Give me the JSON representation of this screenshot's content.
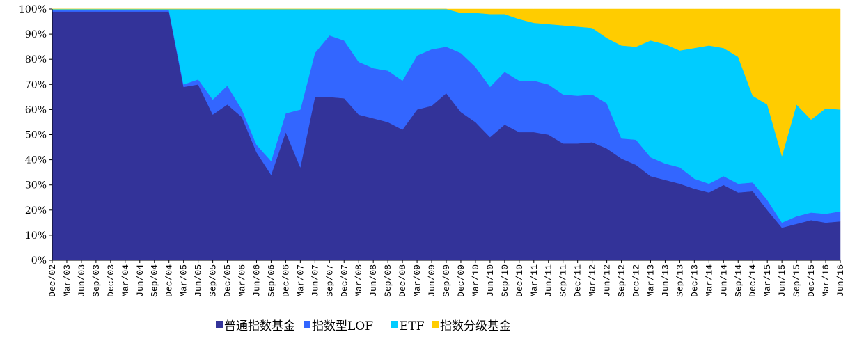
{
  "chart_data": {
    "type": "stacked_area",
    "categories": [
      "Dec/02",
      "Mar/03",
      "Jun/03",
      "Sep/03",
      "Dec/03",
      "Mar/04",
      "Jun/04",
      "Sep/04",
      "Dec/04",
      "Mar/05",
      "Jun/05",
      "Sep/05",
      "Dec/05",
      "Mar/06",
      "Jun/06",
      "Sep/06",
      "Dec/06",
      "Mar/07",
      "Jun/07",
      "Sep/07",
      "Dec/07",
      "Mar/08",
      "Jun/08",
      "Sep/08",
      "Dec/08",
      "Mar/09",
      "Jun/09",
      "Sep/09",
      "Dec/09",
      "Mar/10",
      "Jun/10",
      "Sep/10",
      "Dec/10",
      "Mar/11",
      "Jun/11",
      "Sep/11",
      "Dec/11",
      "Mar/12",
      "Jun/12",
      "Sep/12",
      "Dec/12",
      "Mar/13",
      "Jun/13",
      "Sep/13",
      "Dec/13",
      "Mar/14",
      "Jun/14",
      "Sep/14",
      "Dec/14",
      "Mar/15",
      "Jun/15",
      "Sep/15",
      "Dec/15",
      "Mar/16",
      "Jun/16"
    ],
    "series": [
      {
        "name": "普通指数基金",
        "color": "#333399",
        "values": [
          99,
          99,
          99,
          99,
          99,
          99,
          99,
          99,
          99,
          69,
          70,
          58,
          62,
          57,
          43,
          34,
          51,
          37,
          65,
          65,
          64.5,
          58,
          56.5,
          55,
          52,
          60,
          61.5,
          66.5,
          59,
          55,
          49,
          54,
          51,
          51,
          50,
          46.5,
          46.5,
          47,
          44.5,
          40.5,
          38,
          33.5,
          32,
          30.5,
          28.5,
          27,
          30,
          27,
          27.5,
          20,
          13,
          14.5,
          16,
          15,
          15.5
        ]
      },
      {
        "name": "指数型LOF",
        "color": "#3366ff",
        "values": [
          0.5,
          0.5,
          0.5,
          0.5,
          0.5,
          0.5,
          0.5,
          0.5,
          0.5,
          1,
          2,
          6,
          7.5,
          3,
          3,
          5.5,
          7.5,
          23,
          17.5,
          24.5,
          23,
          21,
          20,
          20.5,
          19.5,
          21.5,
          22.5,
          18.5,
          23.5,
          22,
          20,
          21,
          20.5,
          20.5,
          20,
          19.5,
          19,
          19,
          18,
          8,
          10,
          7.5,
          6.5,
          6.5,
          4,
          3.5,
          3.5,
          3.5,
          3.5,
          4,
          2,
          3,
          3,
          3.5,
          4
        ]
      },
      {
        "name": "ETF",
        "color": "#00ccff",
        "values": [
          0.5,
          0.5,
          0.5,
          0.5,
          0.5,
          0.5,
          0.5,
          0.5,
          0.5,
          30,
          28,
          36,
          30.5,
          40,
          54,
          60.5,
          41.5,
          40,
          17.5,
          10.5,
          12.5,
          21,
          23.5,
          24.5,
          28.5,
          18.5,
          16,
          15,
          16,
          21.5,
          29,
          23,
          24.5,
          23,
          24,
          27.5,
          27.5,
          26.5,
          26,
          37,
          37,
          46.5,
          47.5,
          46.5,
          52,
          55,
          51,
          50.5,
          34.5,
          38,
          26.5,
          44.5,
          37,
          42,
          40.5
        ]
      },
      {
        "name": "指数分级基金",
        "color": "#ffcc00",
        "values": [
          0,
          0,
          0,
          0,
          0,
          0,
          0,
          0,
          0,
          0,
          0,
          0,
          0,
          0,
          0,
          0,
          0,
          0,
          0,
          0,
          0,
          0,
          0,
          0,
          0,
          0,
          0,
          0,
          1.5,
          1.5,
          2,
          2,
          4,
          5.5,
          6,
          6.5,
          7,
          7.5,
          11.5,
          14.5,
          15,
          12.5,
          14,
          16.5,
          15.5,
          14.5,
          15.5,
          19,
          34.5,
          38,
          58.5,
          38,
          44,
          39.5,
          40
        ]
      }
    ],
    "ylim": [
      0,
      100
    ],
    "yticks": [
      {
        "value": 0,
        "label": "0%"
      },
      {
        "value": 10,
        "label": "10%"
      },
      {
        "value": 20,
        "label": "20%"
      },
      {
        "value": 30,
        "label": "30%"
      },
      {
        "value": 40,
        "label": "40%"
      },
      {
        "value": 50,
        "label": "50%"
      },
      {
        "value": 60,
        "label": "60%"
      },
      {
        "value": 70,
        "label": "70%"
      },
      {
        "value": 80,
        "label": "80%"
      },
      {
        "value": 90,
        "label": "90%"
      },
      {
        "value": 100,
        "label": "100%"
      }
    ],
    "legend": "bottom"
  }
}
